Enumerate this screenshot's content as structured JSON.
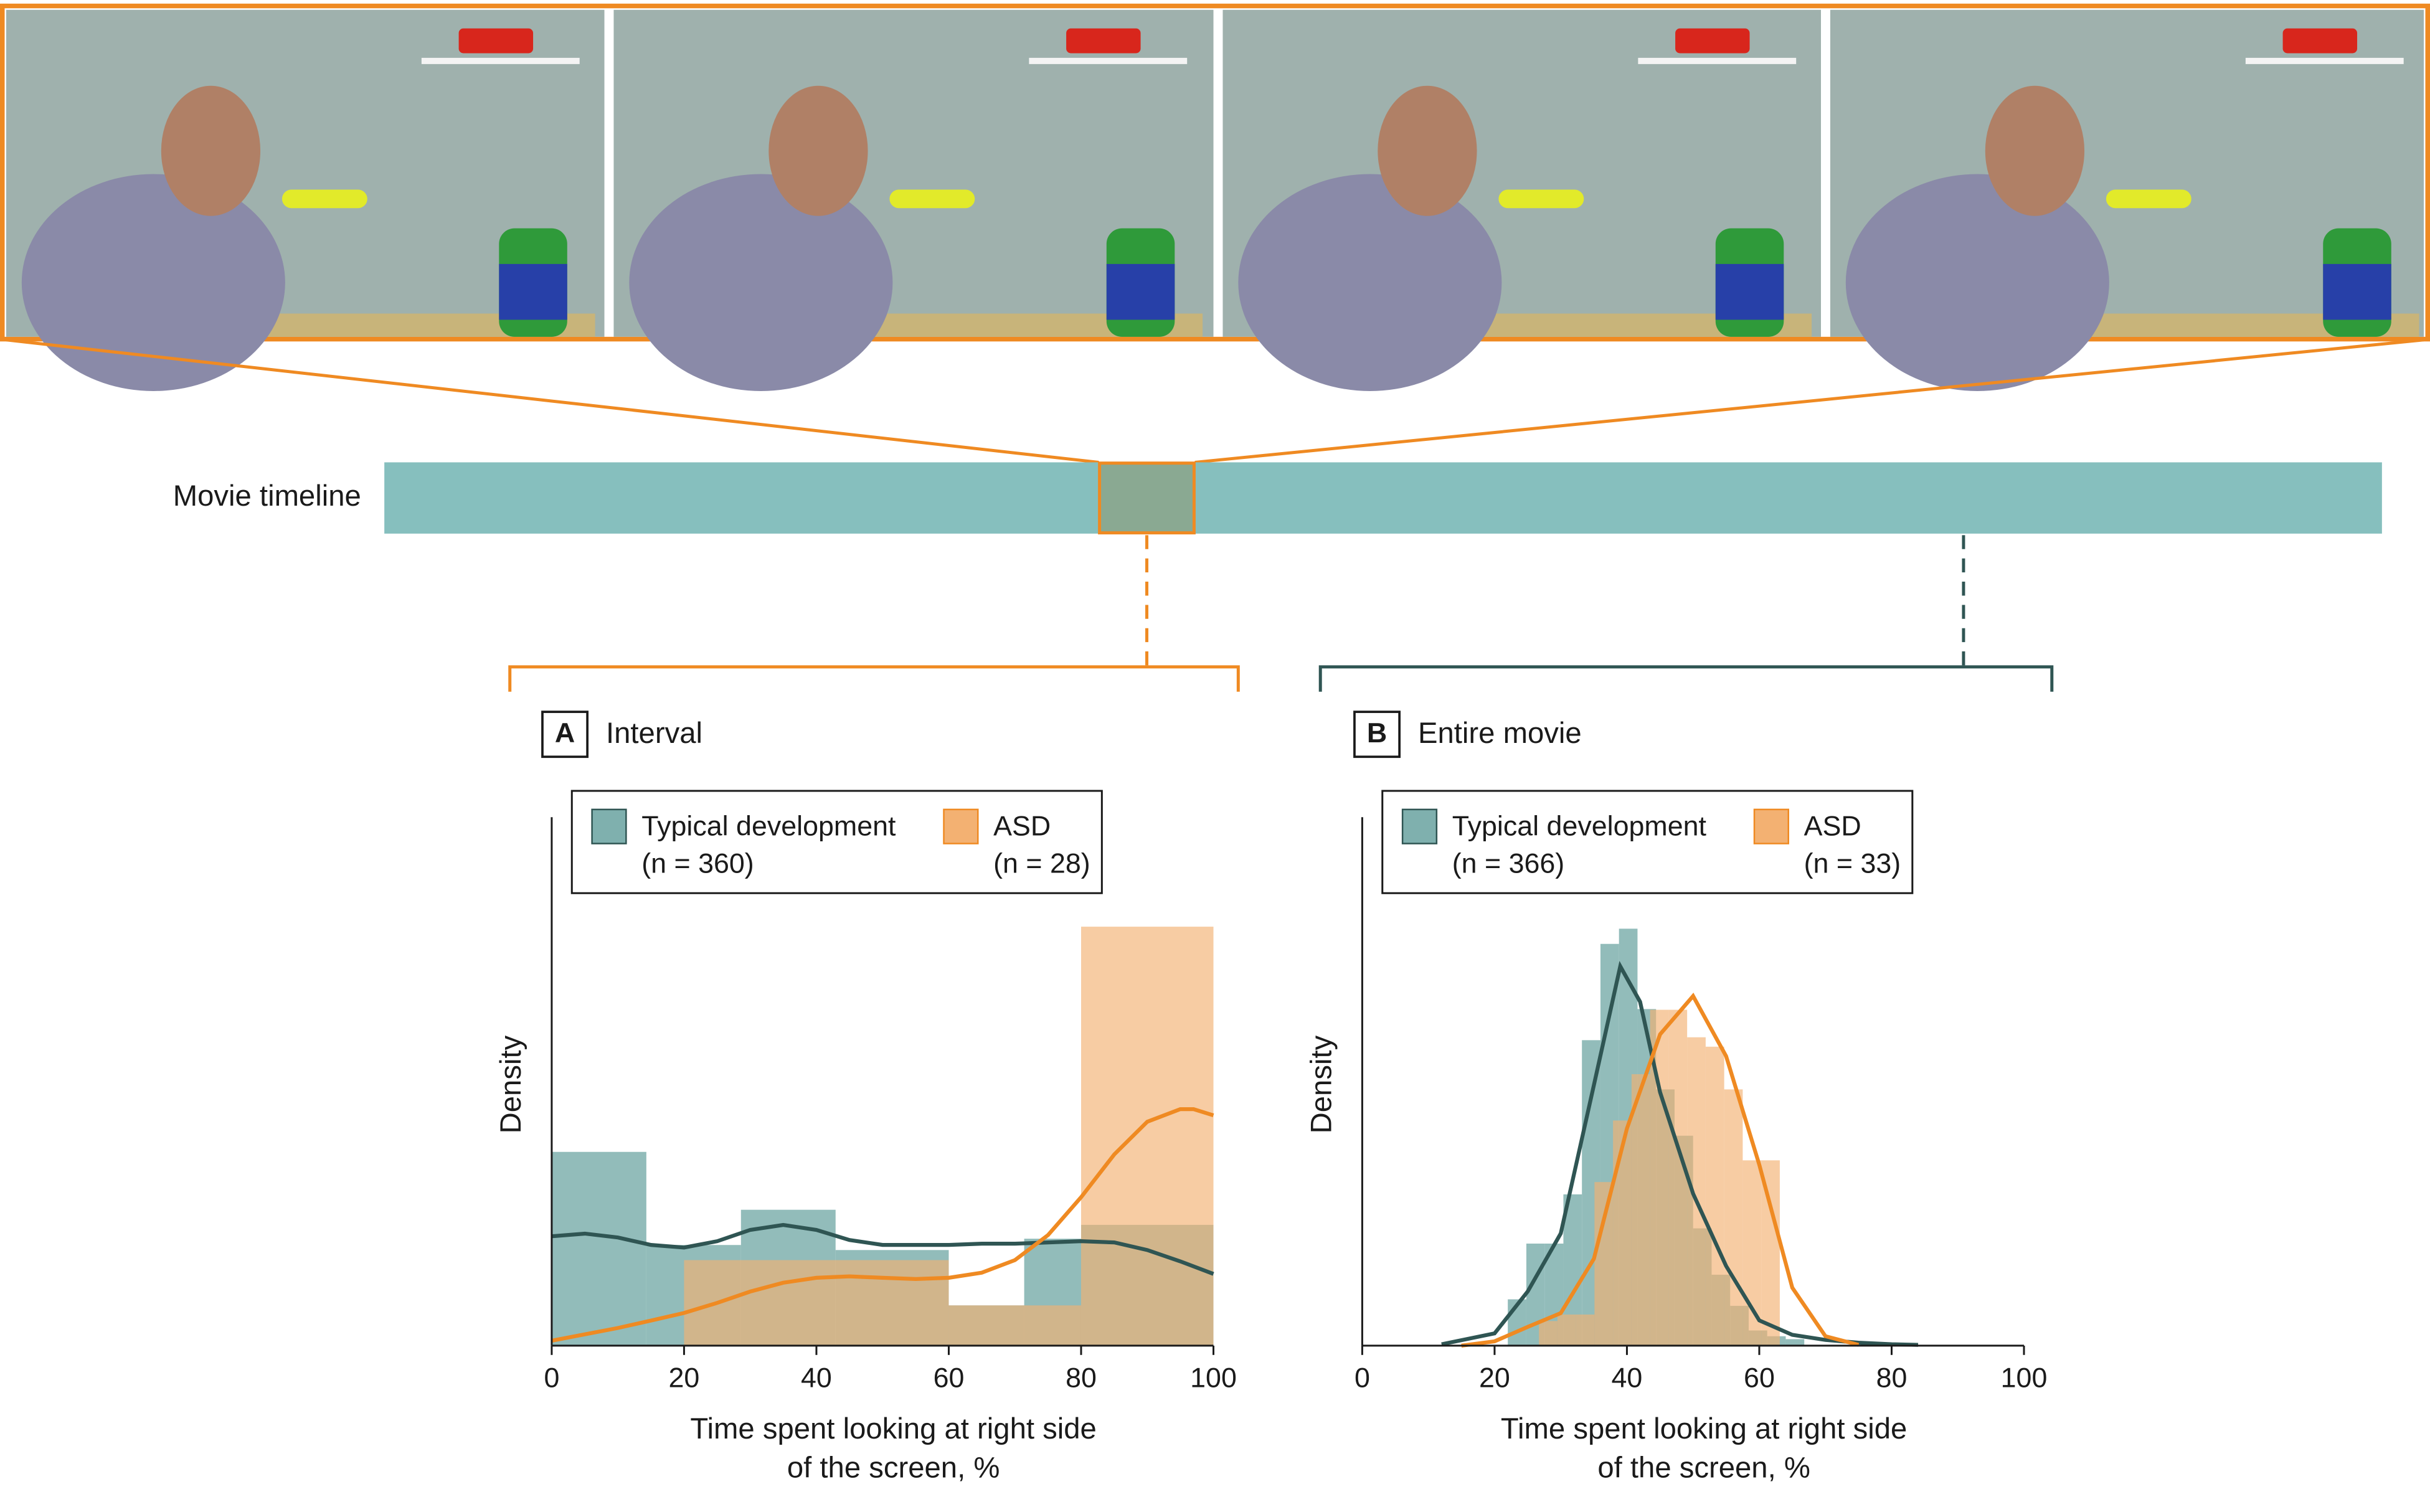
{
  "timeline_label": "Movie timeline",
  "chart_data": [
    {
      "type": "histogram",
      "panel": "A",
      "title": "Interval",
      "ylabel": "Density",
      "xlabel": [
        "Time spent looking at right side",
        "of the screen, %"
      ],
      "xlim": [
        0,
        100
      ],
      "xticks": [
        0,
        20,
        40,
        60,
        80,
        100
      ],
      "ylim": [
        0,
        0.042
      ],
      "series": [
        {
          "name": "Typical development",
          "n_label": "(n = 360)",
          "color": "#7fb0ae",
          "line_color": "#2f5553",
          "bins": [
            0,
            14.3,
            28.6,
            42.9,
            60,
            71.4,
            80,
            100
          ],
          "values": [
            0.0154,
            0.008,
            0.0108,
            0.0076,
            0.0032,
            0.0085,
            0.0096
          ],
          "kde_x": [
            0,
            5,
            10,
            15,
            20,
            25,
            30,
            35,
            40,
            45,
            50,
            55,
            60,
            65,
            70,
            75,
            80,
            85,
            90,
            95,
            100
          ],
          "kde_y": [
            0.0087,
            0.0089,
            0.0086,
            0.008,
            0.0078,
            0.0083,
            0.0092,
            0.0096,
            0.0092,
            0.0084,
            0.008,
            0.008,
            0.008,
            0.0081,
            0.0081,
            0.0082,
            0.0083,
            0.0082,
            0.0076,
            0.0067,
            0.0057
          ]
        },
        {
          "name": "ASD",
          "n_label": "(n = 28)",
          "color": "#f3b172",
          "line_color": "#ef8a22",
          "bins": [
            20,
            60,
            80,
            100
          ],
          "values": [
            0.0068,
            0.0032,
            0.0333
          ],
          "kde_x": [
            0,
            5,
            10,
            15,
            20,
            25,
            30,
            35,
            40,
            45,
            50,
            55,
            60,
            65,
            70,
            75,
            80,
            85,
            90,
            95,
            97,
            100
          ],
          "kde_y": [
            0.0004,
            0.0009,
            0.0014,
            0.002,
            0.0026,
            0.0034,
            0.0043,
            0.005,
            0.0054,
            0.0055,
            0.0054,
            0.0053,
            0.0054,
            0.0058,
            0.0068,
            0.0088,
            0.0118,
            0.0152,
            0.0178,
            0.0188,
            0.0188,
            0.0183
          ]
        }
      ]
    },
    {
      "type": "histogram",
      "panel": "B",
      "title": "Entire movie",
      "ylabel": "Density",
      "xlabel": [
        "Time spent looking at right side",
        "of the screen, %"
      ],
      "xlim": [
        0,
        100
      ],
      "xticks": [
        0,
        20,
        40,
        60,
        80,
        100
      ],
      "ylim": [
        0,
        0.073
      ],
      "series": [
        {
          "name": "Typical development",
          "n_label": "(n = 366)",
          "color": "#7fb0ae",
          "line_color": "#2f5553",
          "bins": [
            22,
            24.8,
            27.6,
            30.4,
            33.2,
            36,
            38.8,
            41.6,
            44.4,
            47.2,
            50,
            52.8,
            55.6,
            58.4,
            61.2,
            64,
            66.8
          ],
          "values": [
            0.0064,
            0.0141,
            0.0141,
            0.0209,
            0.0422,
            0.0555,
            0.0576,
            0.0465,
            0.0354,
            0.029,
            0.0162,
            0.0098,
            0.0055,
            0.0021,
            0.0013,
            0.0009
          ],
          "kde_x": [
            12,
            20,
            25,
            30,
            35,
            39,
            42,
            45,
            50,
            55,
            60,
            65,
            70,
            75,
            80,
            84
          ],
          "kde_y": [
            0.0002,
            0.0017,
            0.0075,
            0.0155,
            0.036,
            0.0524,
            0.0475,
            0.035,
            0.021,
            0.011,
            0.0035,
            0.0015,
            0.0008,
            0.0004,
            0.0002,
            0.0001
          ]
        },
        {
          "name": "ASD",
          "n_label": "(n = 33)",
          "color": "#f3b172",
          "line_color": "#ef8a22",
          "bins": [
            26.7,
            29.5,
            32.3,
            35.1,
            37.9,
            40.7,
            43.5,
            46.3,
            49.1,
            51.9,
            54.7,
            57.5,
            60.3,
            63.1
          ],
          "values": [
            0.0034,
            0.0043,
            0.0043,
            0.0226,
            0.0311,
            0.0375,
            0.0464,
            0.0464,
            0.0426,
            0.0413,
            0.0354,
            0.0256,
            0.0256
          ],
          "kde_x": [
            15,
            20,
            25,
            30,
            35,
            40,
            45,
            50,
            55,
            60,
            65,
            70,
            75
          ],
          "kde_y": [
            0,
            0.0006,
            0.0026,
            0.0045,
            0.012,
            0.03,
            0.043,
            0.0483,
            0.04,
            0.025,
            0.008,
            0.0013,
            0.0001
          ]
        }
      ]
    }
  ]
}
